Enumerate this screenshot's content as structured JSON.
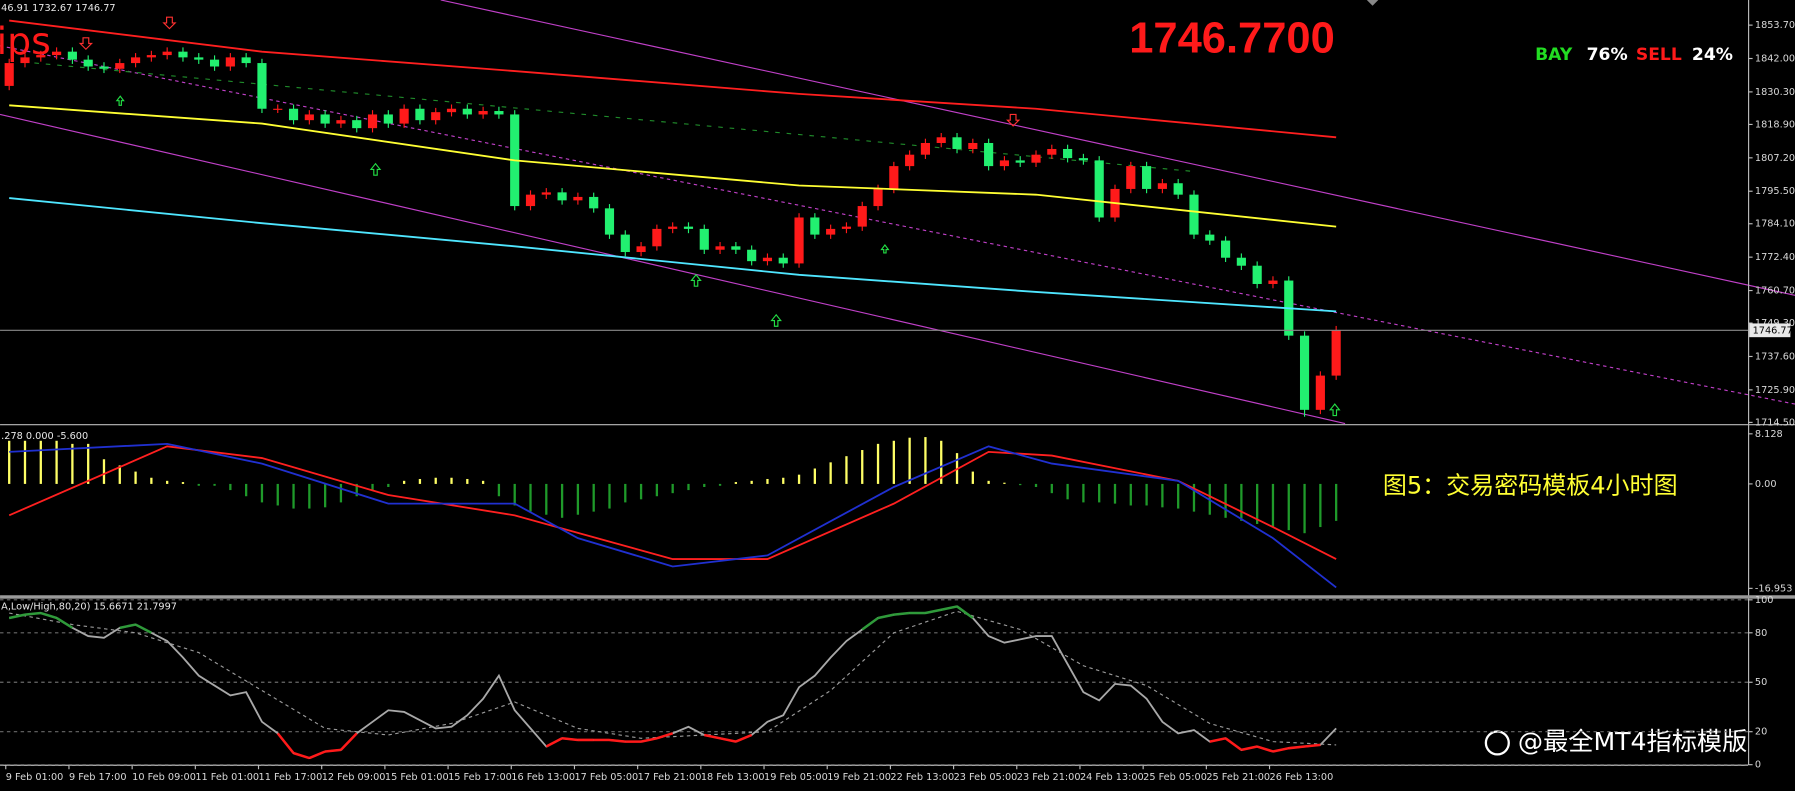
{
  "chart_data": [
    {
      "type": "candlestick",
      "header": "46.91 1732.67 1746.77",
      "symbol_label": "ips",
      "price_display": "1746.7700",
      "signal": {
        "buy_label": "BAY",
        "buy_share": "76%",
        "sell_label": "SELL",
        "sell_share": "24%"
      },
      "categories": [
        "9 Feb 01:00",
        null,
        null,
        null,
        "9 Feb 17:00",
        null,
        null,
        null,
        "10 Feb 09:00",
        null,
        null,
        null,
        "11 Feb 01:00",
        null,
        null,
        null,
        "11 Feb 17:00",
        null,
        null,
        null,
        "12 Feb 09:00",
        null,
        null,
        null,
        "15 Feb 01:00",
        null,
        null,
        null,
        "15 Feb 17:00",
        null,
        null,
        null,
        "16 Feb 13:00",
        null,
        null,
        null,
        "17 Feb 05:00",
        null,
        null,
        null,
        "17 Feb 21:00",
        null,
        null,
        null,
        "18 Feb 13:00",
        null,
        null,
        null,
        "19 Feb 05:00",
        null,
        null,
        null,
        "19 Feb 21:00",
        null,
        null,
        null,
        "22 Feb 13:00",
        null,
        null,
        null,
        "23 Feb 05:00",
        null,
        null,
        null,
        "23 Feb 21:00",
        null,
        null,
        null,
        "24 Feb 13:00",
        null,
        null,
        null,
        "25 Feb 05:00",
        null,
        null,
        null,
        "25 Feb 21:00",
        null,
        null,
        null,
        "26 Feb 13:00",
        null,
        null,
        null,
        null
      ],
      "open": [
        1832.4,
        1840.4,
        1842.4,
        1843.2,
        1844.4,
        1841.6,
        1839.2,
        1838.4,
        1840.4,
        1842.4,
        1843.2,
        1844.4,
        1842.4,
        1841.6,
        1839.2,
        1842.4,
        1840.4,
        1824.4,
        1824.4,
        1820.4,
        1822.4,
        1819.2,
        1820.4,
        1817.6,
        1822.4,
        1819.2,
        1824.4,
        1820.4,
        1823.2,
        1824.4,
        1822.4,
        1823.6,
        1822.4,
        1790.3,
        1794.3,
        1795.1,
        1792.3,
        1793.5,
        1789.5,
        1780.3,
        1774.2,
        1776.2,
        1782.3,
        1783.1,
        1782.3,
        1775.0,
        1776.2,
        1775.0,
        1771.0,
        1772.2,
        1770.2,
        1786.3,
        1780.3,
        1782.3,
        1783.1,
        1790.3,
        1796.3,
        1804.3,
        1808.3,
        1812.4,
        1814.4,
        1810.3,
        1812.4,
        1804.3,
        1806.3,
        1805.5,
        1808.3,
        1810.3,
        1807.1,
        1806.3,
        1786.3,
        1796.3,
        1804.3,
        1796.3,
        1798.3,
        1794.3,
        1780.3,
        1778.2,
        1772.2,
        1769.4,
        1763.0,
        1764.2,
        1744.9,
        1718.9,
        1730.9
      ],
      "high": [
        1841.9,
        1843.9,
        1844.7,
        1845.9,
        1845.9,
        1843.1,
        1840.7,
        1841.9,
        1843.9,
        1844.7,
        1845.9,
        1845.9,
        1843.9,
        1843.1,
        1843.9,
        1843.9,
        1841.9,
        1825.9,
        1825.9,
        1823.9,
        1823.9,
        1821.9,
        1821.9,
        1823.9,
        1823.9,
        1825.9,
        1825.9,
        1824.7,
        1825.9,
        1825.9,
        1825.1,
        1825.1,
        1823.9,
        1795.8,
        1796.6,
        1796.6,
        1795.0,
        1795.0,
        1791.0,
        1781.8,
        1777.7,
        1783.8,
        1784.6,
        1784.6,
        1783.8,
        1777.7,
        1777.7,
        1776.5,
        1773.7,
        1773.7,
        1787.8,
        1787.8,
        1783.8,
        1784.6,
        1791.8,
        1797.8,
        1805.8,
        1809.8,
        1813.9,
        1815.9,
        1815.9,
        1813.9,
        1813.9,
        1807.8,
        1807.8,
        1809.8,
        1811.8,
        1811.8,
        1808.6,
        1807.8,
        1797.8,
        1805.8,
        1805.8,
        1799.8,
        1799.8,
        1795.8,
        1781.8,
        1779.7,
        1773.7,
        1770.9,
        1765.7,
        1765.7,
        1746.4,
        1732.4,
        1748.3
      ],
      "low": [
        1830.9,
        1838.9,
        1840.9,
        1841.7,
        1840.1,
        1837.7,
        1836.9,
        1836.9,
        1838.9,
        1840.9,
        1841.7,
        1840.9,
        1840.1,
        1837.7,
        1837.7,
        1838.9,
        1822.9,
        1822.9,
        1818.9,
        1818.9,
        1817.7,
        1817.7,
        1816.1,
        1816.1,
        1817.7,
        1817.7,
        1818.9,
        1818.9,
        1821.7,
        1820.9,
        1820.9,
        1820.9,
        1788.8,
        1788.8,
        1792.8,
        1790.8,
        1790.8,
        1788.0,
        1778.8,
        1772.7,
        1772.7,
        1774.7,
        1780.8,
        1780.8,
        1773.5,
        1773.5,
        1773.5,
        1769.5,
        1769.5,
        1768.7,
        1768.7,
        1778.8,
        1778.8,
        1780.8,
        1781.6,
        1788.8,
        1794.8,
        1802.8,
        1806.8,
        1810.9,
        1808.8,
        1808.8,
        1802.8,
        1802.8,
        1804.0,
        1804.0,
        1806.8,
        1805.6,
        1804.8,
        1784.8,
        1784.8,
        1794.8,
        1794.8,
        1794.8,
        1792.8,
        1778.8,
        1776.7,
        1770.7,
        1767.9,
        1761.5,
        1761.5,
        1743.4,
        1716.5,
        1717.4,
        1729.4
      ],
      "close": [
        1840.4,
        1842.4,
        1843.2,
        1844.4,
        1841.6,
        1839.2,
        1838.4,
        1840.4,
        1842.4,
        1843.2,
        1844.4,
        1842.4,
        1841.6,
        1839.2,
        1842.4,
        1840.4,
        1824.4,
        1824.4,
        1820.4,
        1822.4,
        1819.2,
        1820.4,
        1817.6,
        1822.4,
        1819.2,
        1824.4,
        1820.4,
        1823.2,
        1824.4,
        1822.4,
        1823.6,
        1822.4,
        1790.3,
        1794.3,
        1795.1,
        1792.3,
        1793.5,
        1789.5,
        1780.3,
        1774.2,
        1776.2,
        1782.3,
        1783.1,
        1782.3,
        1775.0,
        1776.2,
        1775.0,
        1771.0,
        1772.2,
        1770.2,
        1786.3,
        1780.3,
        1782.3,
        1783.1,
        1790.3,
        1796.3,
        1804.3,
        1808.3,
        1812.4,
        1814.4,
        1810.3,
        1812.4,
        1804.3,
        1806.3,
        1805.5,
        1808.3,
        1810.3,
        1807.1,
        1806.3,
        1786.3,
        1796.3,
        1804.3,
        1796.3,
        1798.3,
        1794.3,
        1780.3,
        1778.2,
        1772.2,
        1769.4,
        1763.0,
        1764.2,
        1744.9,
        1718.9,
        1730.9,
        1746.77
      ],
      "up_color": "#ff1a1a",
      "down_color": "#22f070",
      "series": [
        {
          "color": "#ff1f1f",
          "x": [
            0,
            16,
            32,
            50,
            65,
            84
          ],
          "values": [
            1855.3,
            1844.4,
            1837.6,
            1829.6,
            1824.4,
            1814.4
          ]
        },
        {
          "color": "#ffff33",
          "x": [
            0,
            16,
            32,
            50,
            65,
            84
          ],
          "values": [
            1825.6,
            1819.2,
            1806.3,
            1797.5,
            1794.3,
            1783.1
          ]
        },
        {
          "color": "#4fe6ff",
          "x": [
            0,
            16,
            32,
            50,
            65,
            84
          ],
          "values": [
            1793.1,
            1784.3,
            1776.2,
            1766.2,
            1760.2,
            1753.4
          ]
        }
      ],
      "current_price": {
        "value": 1746.77,
        "label": "1746.77"
      },
      "ylim": [
        1714.1,
        1862.5
      ],
      "yticks": [
        {
          "value": 1853.7,
          "label": "1853.70"
        },
        {
          "value": 1842,
          "label": "1842.00"
        },
        {
          "value": 1830.3,
          "label": "1830.30"
        },
        {
          "value": 1818.9,
          "label": "1818.90"
        },
        {
          "value": 1807.2,
          "label": "1807.20"
        },
        {
          "value": 1795.5,
          "label": "1795.50"
        },
        {
          "value": 1784.1,
          "label": "1784.10"
        },
        {
          "value": 1772.4,
          "label": "1772.40"
        },
        {
          "value": 1760.7,
          "label": "1760.70"
        },
        {
          "value": 1749.3,
          "label": "1749.30"
        },
        {
          "value": 1737.6,
          "label": "1737.60"
        },
        {
          "value": 1725.9,
          "label": "1725.90"
        },
        {
          "value": 1714.5,
          "label": "1714.50"
        }
      ],
      "grid": false
    },
    {
      "type": "bar",
      "header": ".278 0.000 -5.600",
      "caption": "图5：交易密码模板4小时图",
      "values": [
        7.0,
        7.0,
        7.0,
        7.0,
        6.5,
        6.5,
        4.0,
        3.0,
        2.0,
        1.0,
        0.5,
        0.3,
        -0.3,
        -0.3,
        -1.0,
        -2.0,
        -3.0,
        -3.5,
        -4.0,
        -4.0,
        -3.8,
        -3.0,
        -2.0,
        -1.0,
        -0.5,
        0.5,
        0.8,
        1.0,
        1.0,
        0.8,
        0.5,
        -2.0,
        -3.5,
        -4.5,
        -5.0,
        -5.5,
        -5.0,
        -4.5,
        -4.0,
        -3.0,
        -2.5,
        -2.0,
        -1.5,
        -1.0,
        -0.5,
        -0.3,
        0.3,
        0.5,
        0.8,
        1.0,
        1.5,
        2.5,
        3.5,
        4.5,
        5.5,
        6.5,
        7.0,
        7.5,
        7.6,
        7.0,
        5.0,
        2.0,
        0.5,
        0.2,
        -0.2,
        -0.5,
        -1.5,
        -2.5,
        -3.0,
        -3.0,
        -3.2,
        -3.5,
        -3.5,
        -3.8,
        -4.0,
        -4.5,
        -5.0,
        -5.5,
        -6.0,
        -6.5,
        -7.0,
        -7.5,
        -8.0,
        -7.0,
        -6.0
      ],
      "positive_color": "#ffff66",
      "negative_color": "#1f9a2a",
      "series": [
        {
          "color": "#ff2020",
          "x": [
            0,
            10,
            16,
            24,
            32,
            42,
            48,
            56,
            62,
            66,
            74,
            80,
            84
          ],
          "values": [
            -5.1,
            6.1,
            4.2,
            -1.8,
            -5.1,
            -12.2,
            -12.2,
            -3.2,
            5.2,
            4.6,
            0.5,
            -7.0,
            -12.2
          ]
        },
        {
          "color": "#2030d0",
          "x": [
            0,
            10,
            16,
            24,
            32,
            36,
            42,
            48,
            56,
            62,
            66,
            74,
            80,
            84
          ],
          "values": [
            5.2,
            6.5,
            3.3,
            -3.2,
            -3.2,
            -8.8,
            -13.4,
            -11.6,
            -0.5,
            6.1,
            3.3,
            0.5,
            -8.8,
            -16.8
          ]
        }
      ],
      "ylim": [
        -18.07,
        9.24
      ],
      "yticks": [
        8.128,
        {
          "value": 0,
          "label": "0.00"
        },
        -16.953
      ],
      "grid": false
    },
    {
      "type": "line",
      "header": "A,Low/High,80,20) 15.6671 21.7997",
      "watermark": "@最全MT4指标模版",
      "series": [
        {
          "color": "#a8a8a8",
          "values": [
            89,
            91,
            92,
            89,
            83,
            78,
            77,
            83,
            85,
            80,
            75,
            65,
            54,
            48,
            42,
            44,
            26,
            19,
            7,
            4,
            8,
            9,
            19,
            26,
            33,
            32,
            27,
            22,
            23,
            30,
            40,
            54,
            33,
            22,
            11,
            16,
            15,
            15,
            15,
            14,
            14,
            16,
            19,
            23,
            18,
            16,
            14,
            18,
            26,
            30,
            47,
            54,
            65,
            75,
            82,
            89,
            91,
            92,
            92,
            94,
            96,
            89,
            78,
            74,
            76,
            78,
            78,
            61,
            44,
            39,
            49,
            48,
            40,
            26,
            19,
            21,
            14,
            16,
            9,
            11,
            8,
            10,
            11,
            12,
            22
          ]
        },
        {
          "color": "#9a9a9a",
          "dashed": true,
          "x": [
            0,
            4,
            8,
            12,
            16,
            20,
            24,
            28,
            32,
            36,
            40,
            44,
            48,
            52,
            56,
            60,
            64,
            68,
            72,
            76,
            80,
            84
          ],
          "values": [
            92,
            85,
            80,
            68,
            45,
            22,
            18,
            25,
            38,
            22,
            16,
            18,
            20,
            45,
            80,
            93,
            82,
            60,
            48,
            25,
            14,
            12
          ]
        }
      ],
      "overbought": 80,
      "oversold": 20,
      "overbought_color": "#2f9a3a",
      "oversold_color": "#ff1a1a",
      "ylim": [
        0,
        100
      ],
      "yticks": [
        0,
        20,
        50,
        80,
        100
      ],
      "grid": true
    }
  ]
}
